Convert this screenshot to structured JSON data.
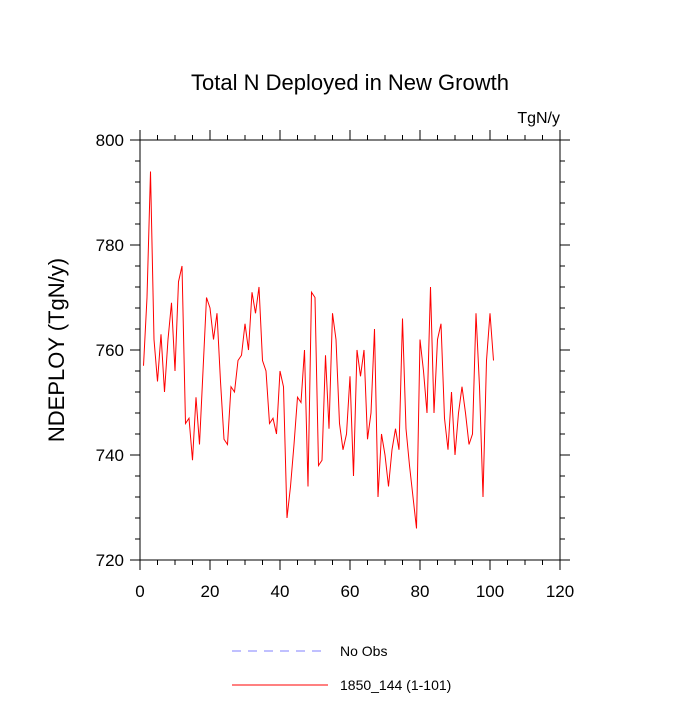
{
  "chart_data": {
    "type": "line",
    "title": "Total N Deployed in New Growth",
    "units": "TgN/y",
    "xlabel": "",
    "ylabel": "NDEPLOY  (TgN/y)",
    "xlim": [
      0,
      120
    ],
    "ylim": [
      720,
      800
    ],
    "xticks": [
      0,
      20,
      40,
      60,
      80,
      100,
      120
    ],
    "yticks": [
      720,
      740,
      760,
      780,
      800
    ],
    "xtick_labels": [
      "0",
      "20",
      "40",
      "60",
      "80",
      "100",
      "120"
    ],
    "ytick_labels": [
      "720",
      "740",
      "760",
      "780",
      "800"
    ],
    "grid": false,
    "legend_position": "bottom",
    "series": [
      {
        "name": "No Obs",
        "color": "#8080ff",
        "style": "dashed",
        "values": []
      },
      {
        "name": "1850_144 (1-101)",
        "color": "#ff0000",
        "style": "solid",
        "x": [
          1,
          2,
          3,
          4,
          5,
          6,
          7,
          8,
          9,
          10,
          11,
          12,
          13,
          14,
          15,
          16,
          17,
          18,
          19,
          20,
          21,
          22,
          23,
          24,
          25,
          26,
          27,
          28,
          29,
          30,
          31,
          32,
          33,
          34,
          35,
          36,
          37,
          38,
          39,
          40,
          41,
          42,
          43,
          44,
          45,
          46,
          47,
          48,
          49,
          50,
          51,
          52,
          53,
          54,
          55,
          56,
          57,
          58,
          59,
          60,
          61,
          62,
          63,
          64,
          65,
          66,
          67,
          68,
          69,
          70,
          71,
          72,
          73,
          74,
          75,
          76,
          77,
          78,
          79,
          80,
          81,
          82,
          83,
          84,
          85,
          86,
          87,
          88,
          89,
          90,
          91,
          92,
          93,
          94,
          95,
          96,
          97,
          98,
          99,
          100,
          101
        ],
        "values": [
          757,
          770,
          794,
          762,
          754,
          763,
          752,
          762,
          769,
          756,
          773,
          776,
          746,
          747,
          739,
          751,
          742,
          756,
          770,
          768,
          762,
          767,
          754,
          743,
          742,
          753,
          752,
          758,
          759,
          765,
          760,
          771,
          767,
          772,
          758,
          756,
          746,
          747,
          744,
          756,
          753,
          728,
          734,
          742,
          751,
          750,
          760,
          734,
          771,
          770,
          738,
          739,
          759,
          745,
          767,
          762,
          746,
          741,
          744,
          755,
          736,
          760,
          755,
          760,
          743,
          748,
          764,
          732,
          744,
          740,
          734,
          741,
          745,
          741,
          766,
          745,
          738,
          732,
          726,
          762,
          756,
          748,
          772,
          748,
          762,
          765,
          747,
          741,
          752,
          740,
          748,
          753,
          748,
          742,
          744,
          767,
          753,
          732,
          758,
          767,
          758
        ]
      }
    ]
  }
}
